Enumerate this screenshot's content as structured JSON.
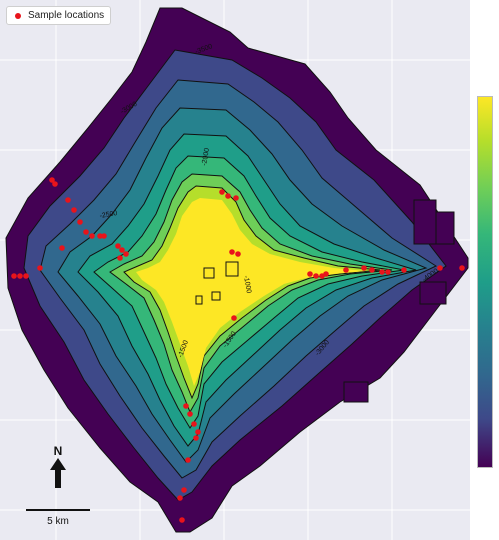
{
  "legend": {
    "label": "Sample locations"
  },
  "north_arrow": {
    "label": "N"
  },
  "scale_bar": {
    "label": "5 km"
  },
  "contour_labels": [
    "-3500",
    "-3000",
    "-2500",
    "-2000",
    "-1500",
    "-1000",
    "-1500",
    "-3000",
    "-4000"
  ],
  "colors": {
    "sample": "#e8141b",
    "background": "#eaeaf2",
    "colormap": [
      "#440154",
      "#3e4989",
      "#31688e",
      "#26828e",
      "#1f9e89",
      "#35b779",
      "#6ece58",
      "#b5de2b",
      "#fde725"
    ]
  },
  "colorbar": {
    "orientation": "vertical",
    "scale": "viridis",
    "tick_labels": "none"
  }
}
